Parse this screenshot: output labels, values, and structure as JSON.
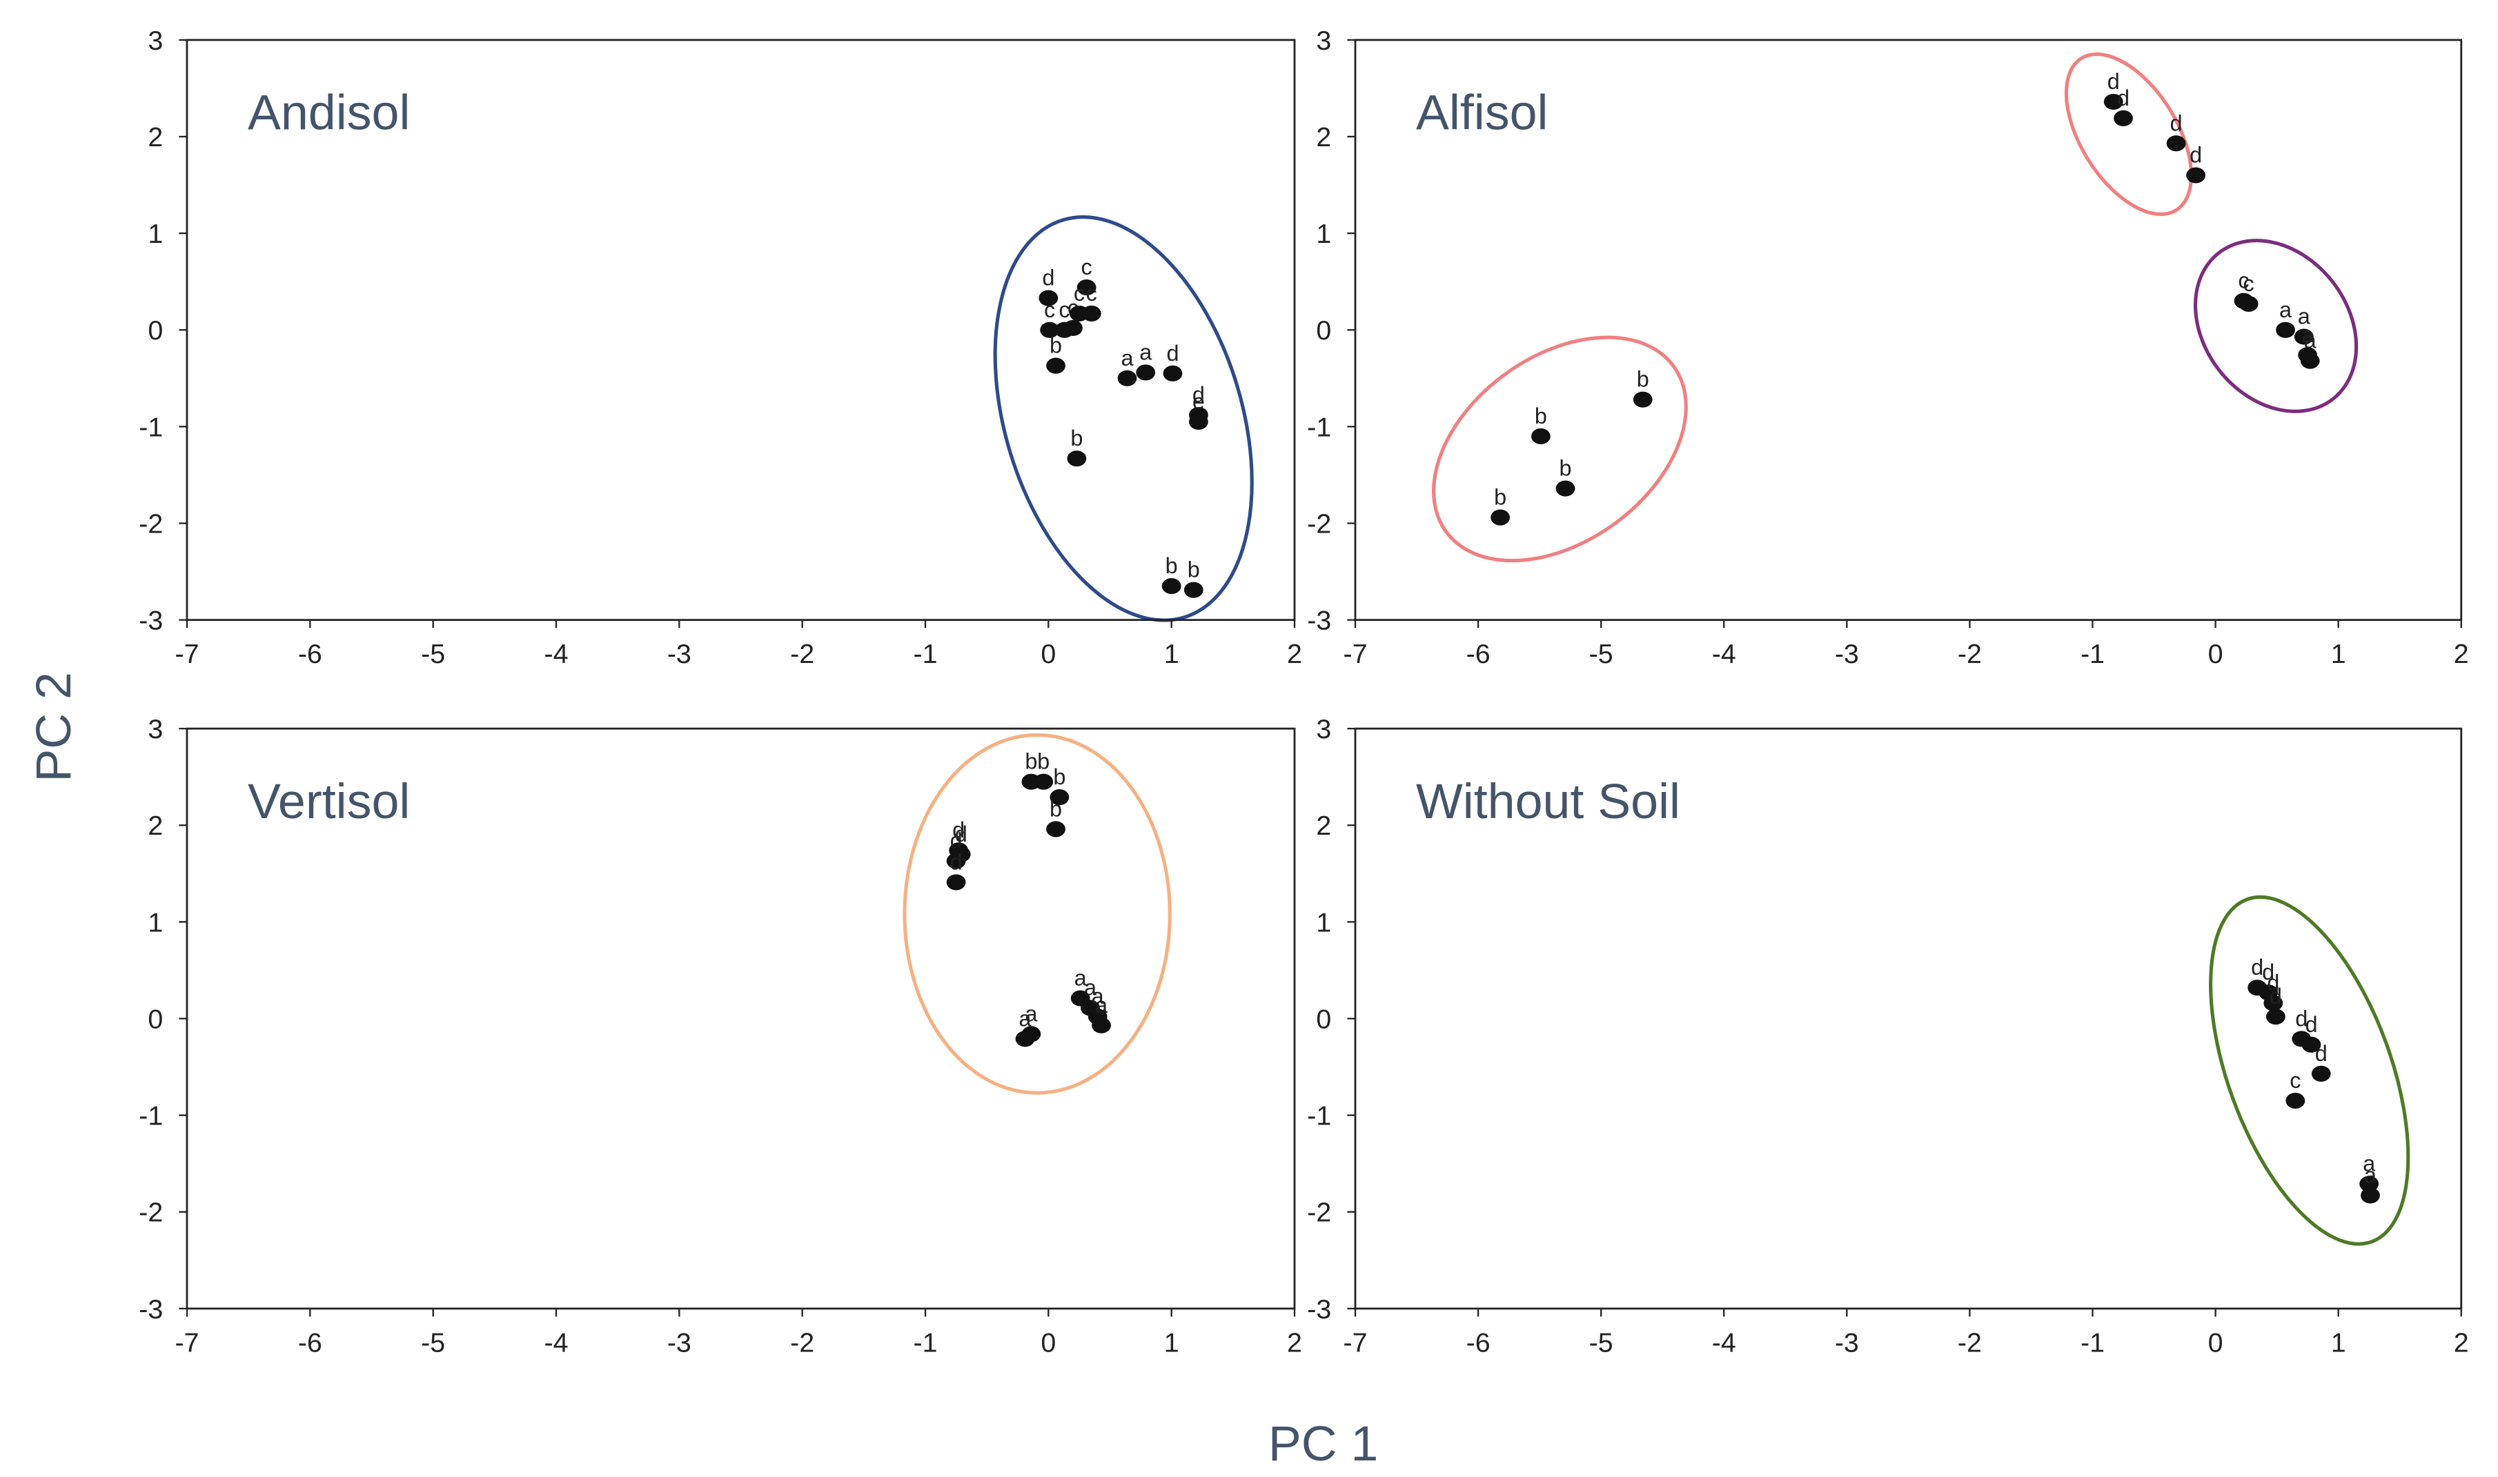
{
  "xlabel": "PC 1",
  "ylabel": "PC 2",
  "chart_data": [
    {
      "type": "scatter",
      "title": "Andisol",
      "color": "#111111",
      "x": [
        0.0,
        0.01,
        0.13,
        0.2,
        0.06,
        0.31,
        0.25,
        0.35,
        0.64,
        0.79,
        1.01,
        1.22,
        1.22,
        0.23,
        1.0,
        1.18
      ],
      "y": [
        0.33,
        0.0,
        0.0,
        0.02,
        -0.37,
        0.44,
        0.17,
        0.17,
        -0.5,
        -0.44,
        -0.45,
        -0.88,
        -0.95,
        -1.33,
        -2.65,
        -2.69
      ],
      "point_labels": [
        "d",
        "c",
        "c",
        "c",
        "b",
        "c",
        "c",
        "c",
        "a",
        "a",
        "d",
        "d",
        "e",
        "b",
        "b",
        "b"
      ],
      "xlim": [
        -7,
        2
      ],
      "ylim": [
        -3,
        3
      ],
      "xticks": [
        -7,
        -6,
        -5,
        -4,
        -3,
        -2,
        -1,
        0,
        1,
        2
      ],
      "yticks": [
        -3,
        -2,
        -1,
        0,
        1,
        2,
        3
      ]
    },
    {
      "type": "scatter",
      "title": "Alfisol",
      "color": "#111111",
      "x": [
        -0.83,
        -0.75,
        -0.32,
        -0.16,
        0.23,
        0.27,
        0.57,
        0.72,
        0.75,
        0.77,
        -4.66,
        -5.49,
        -5.29,
        -5.82
      ],
      "y": [
        2.36,
        2.19,
        1.93,
        1.6,
        0.3,
        0.27,
        0.0,
        -0.07,
        -0.26,
        -0.32,
        -0.72,
        -1.1,
        -1.64,
        -1.94
      ],
      "point_labels": [
        "d",
        "d",
        "d",
        "d",
        "c",
        "c",
        "a",
        "a",
        "a",
        "a",
        "b",
        "b",
        "b",
        "b"
      ],
      "xlim": [
        -7,
        2
      ],
      "ylim": [
        -3,
        3
      ],
      "xticks": [
        -7,
        -6,
        -5,
        -4,
        -3,
        -2,
        -1,
        0,
        1,
        2
      ],
      "yticks": [
        -3,
        -2,
        -1,
        0,
        1,
        2,
        3
      ]
    },
    {
      "type": "scatter",
      "title": "Vertisol",
      "color": "#111111",
      "x": [
        -0.14,
        -0.04,
        0.09,
        0.06,
        -0.73,
        -0.75,
        -0.71,
        -0.75,
        -0.19,
        -0.14,
        0.26,
        0.34,
        0.4,
        0.43
      ],
      "y": [
        2.45,
        2.45,
        2.29,
        1.96,
        1.74,
        1.63,
        1.7,
        1.41,
        -0.21,
        -0.16,
        0.21,
        0.11,
        0.02,
        -0.07
      ],
      "point_labels": [
        "b",
        "b",
        "b",
        "b",
        "d",
        "d",
        "d",
        "d",
        "a",
        "a",
        "a",
        "a",
        "a",
        "a"
      ],
      "xlim": [
        -7,
        2
      ],
      "ylim": [
        -3,
        3
      ],
      "xticks": [
        -7,
        -6,
        -5,
        -4,
        -3,
        -2,
        -1,
        0,
        1,
        2
      ],
      "yticks": [
        -3,
        -2,
        -1,
        0,
        1,
        2,
        3
      ]
    },
    {
      "type": "scatter",
      "title": "Without Soil",
      "color": "#111111",
      "x": [
        0.34,
        0.43,
        0.47,
        0.49,
        0.7,
        0.78,
        0.86,
        0.65,
        1.25,
        1.26
      ],
      "y": [
        0.32,
        0.27,
        0.16,
        0.02,
        -0.21,
        -0.27,
        -0.57,
        -0.85,
        -1.71,
        -1.83
      ],
      "point_labels": [
        "d",
        "d",
        "d",
        "d",
        "d",
        "d",
        "d",
        "c",
        "a",
        "a"
      ],
      "xlim": [
        -7,
        2
      ],
      "ylim": [
        -3,
        3
      ],
      "xticks": [
        -7,
        -6,
        -5,
        -4,
        -3,
        -2,
        -1,
        0,
        1,
        2
      ],
      "yticks": [
        -3,
        -2,
        -1,
        0,
        1,
        2,
        3
      ]
    }
  ]
}
